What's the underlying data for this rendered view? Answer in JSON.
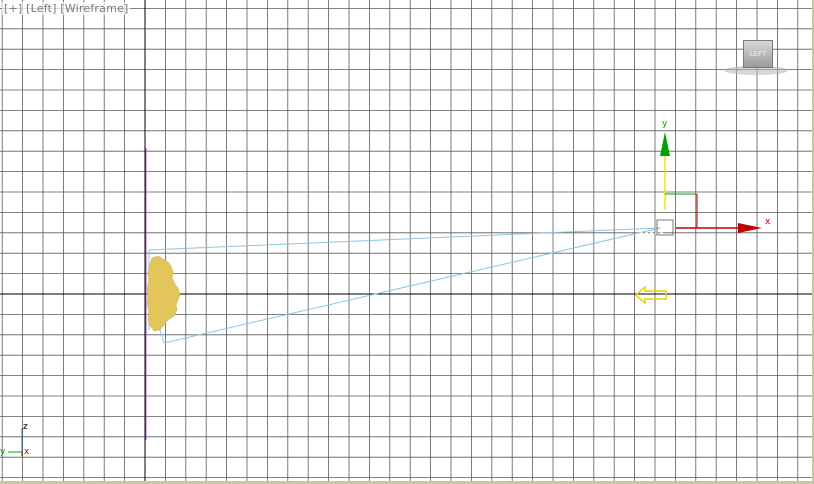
{
  "viewport": {
    "label_open": "[",
    "label_plus": "+",
    "label_sep1": "] [",
    "label_view": "Left",
    "label_sep2": "] [",
    "label_shading": "Wireframe",
    "label_close": "]"
  },
  "viewcube": {
    "face_label": "LEFT"
  },
  "gizmo": {
    "x_label": "x",
    "y_label": "y"
  },
  "axis_tripod": {
    "z_label": "z",
    "y_label": "y",
    "x_label": "x"
  },
  "colors": {
    "grid": "#5a5a5a",
    "grid_major": "#000000",
    "camera_frustum": "#87c7e0",
    "object_fill": "#e2c65a",
    "gizmo_x": "#c00000",
    "gizmo_y": "#00a000",
    "gizmo_select": "#e8e800",
    "purple_guide": "#b54fd8"
  }
}
